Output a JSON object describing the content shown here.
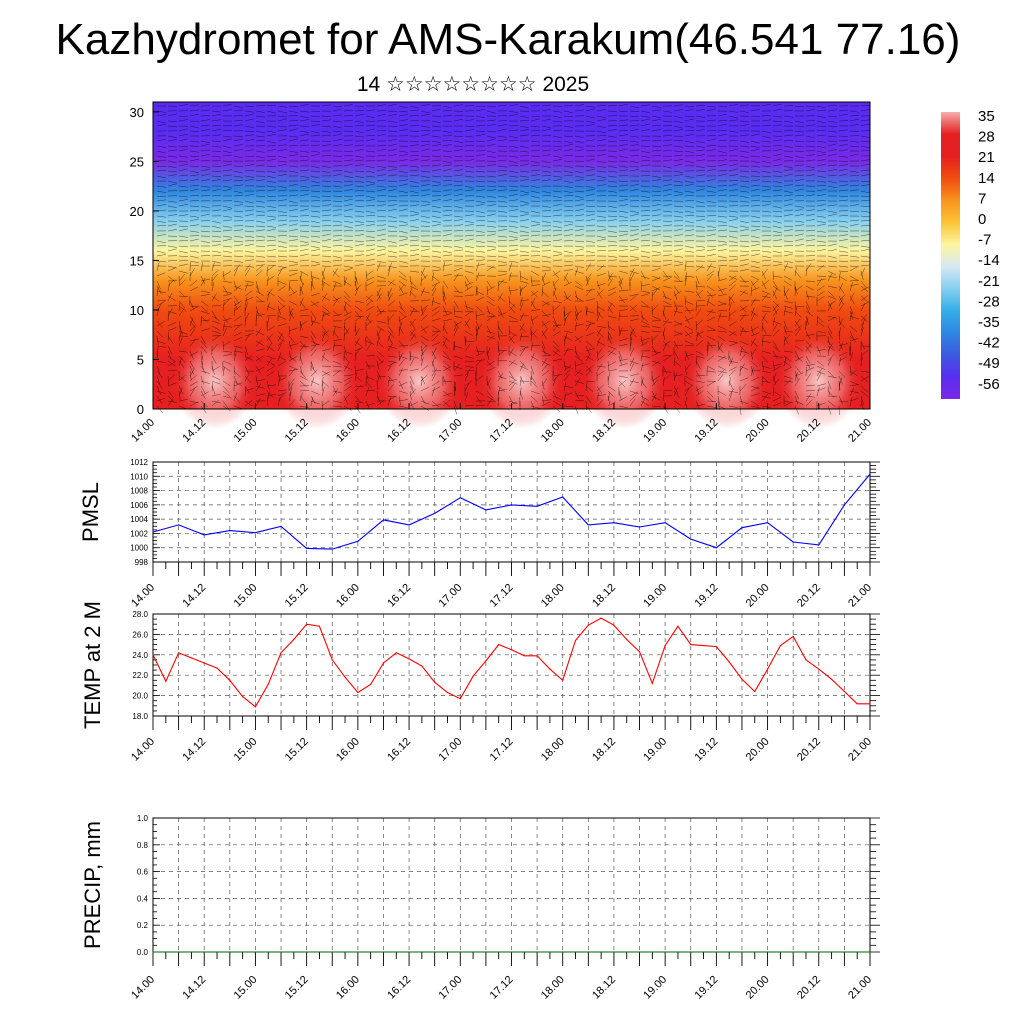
{
  "title": "Kazhydromet for AMS-Karakum(46.541 77.16)",
  "subtitle": "14 ☆☆☆☆☆☆☆☆ 2025",
  "chart_data": [
    {
      "type": "heatmap",
      "variable": "temperature with wind barbs",
      "yticks": [
        "0",
        "5",
        "10",
        "15",
        "20",
        "25",
        "30"
      ],
      "ylim": [
        0,
        31
      ],
      "xticks": [
        "14.00",
        "14.12",
        "15.00",
        "15.12",
        "16.00",
        "16.12",
        "17.00",
        "17.12",
        "18.00",
        "18.12",
        "19.00",
        "19.12",
        "20.00",
        "20.12",
        "21.00"
      ],
      "colorbar": {
        "labels": [
          "35",
          "28",
          "21",
          "14",
          "7",
          "0",
          "-7",
          "-14",
          "-21",
          "-28",
          "-35",
          "-42",
          "-49",
          "-56"
        ],
        "colors": [
          "#f4aeae",
          "#e62020",
          "#e62020",
          "#f04c10",
          "#f7941d",
          "#fbc437",
          "#fdf5a0",
          "#d7e8f4",
          "#86cff0",
          "#35aee8",
          "#2f87e0",
          "#3b5ae0",
          "#5a2cf2",
          "#7a2ae6"
        ]
      },
      "profile": [
        {
          "h": 0,
          "t": 30
        },
        {
          "h": 5,
          "t": 24
        },
        {
          "h": 10,
          "t": 14
        },
        {
          "h": 13,
          "t": 5
        },
        {
          "h": 16,
          "t": -7
        },
        {
          "h": 19,
          "t": -20
        },
        {
          "h": 22,
          "t": -35
        },
        {
          "h": 25,
          "t": -55
        },
        {
          "h": 28,
          "t": -52
        },
        {
          "h": 31,
          "t": -50
        }
      ],
      "grid": false
    },
    {
      "type": "line",
      "ylabel": "PMSL",
      "ylim": [
        998,
        1012
      ],
      "yticks": [
        "998",
        "1000",
        "1002",
        "1004",
        "1006",
        "1008",
        "1010",
        "1012"
      ],
      "xticks": [
        "14.00",
        "14.12",
        "15.00",
        "15.12",
        "16.00",
        "16.12",
        "17.00",
        "17.12",
        "18.00",
        "18.12",
        "19.00",
        "19.12",
        "20.00",
        "20.12",
        "21.00"
      ],
      "x_range": [
        0,
        168
      ],
      "grid": true,
      "series": [
        {
          "color": "#0000ff",
          "x": [
            0,
            6,
            12,
            18,
            24,
            30,
            36,
            42,
            48,
            54,
            60,
            66,
            72,
            78,
            84,
            90,
            96,
            102,
            108,
            114,
            120,
            126,
            132,
            138,
            144,
            150,
            156,
            162,
            168
          ],
          "values": [
            1002.2,
            1003.2,
            1001.8,
            1002.4,
            1002.1,
            1003.0,
            999.9,
            999.8,
            1000.9,
            1003.9,
            1003.2,
            1004.8,
            1007.0,
            1005.3,
            1006.0,
            1005.8,
            1007.1,
            1003.2,
            1003.5,
            1002.9,
            1003.5,
            1001.2,
            1000.0,
            1002.8,
            1003.5,
            1000.8,
            1000.4,
            1006.0,
            1010.3
          ]
        }
      ]
    },
    {
      "type": "line",
      "ylabel": "TEMP at 2 M",
      "ylim": [
        18,
        28
      ],
      "yticks": [
        "18.0",
        "20.0",
        "22.0",
        "24.0",
        "26.0",
        "28.0"
      ],
      "xticks": [
        "14.00",
        "14.12",
        "15.00",
        "15.12",
        "16.00",
        "16.12",
        "17.00",
        "17.12",
        "18.00",
        "18.12",
        "19.00",
        "19.12",
        "20.00",
        "20.12",
        "21.00"
      ],
      "x_range": [
        0,
        168
      ],
      "grid": true,
      "series": [
        {
          "color": "#ff0000",
          "x": [
            0,
            3,
            6,
            9,
            12,
            15,
            18,
            21,
            24,
            27,
            30,
            33,
            36,
            39,
            42,
            45,
            48,
            51,
            54,
            57,
            60,
            63,
            66,
            69,
            72,
            75,
            78,
            81,
            84,
            87,
            90,
            93,
            96,
            99,
            102,
            105,
            108,
            111,
            114,
            117,
            120,
            123,
            126,
            129,
            132,
            135,
            138,
            141,
            144,
            147,
            150,
            153,
            156,
            159,
            162,
            165,
            168
          ],
          "values": [
            24.0,
            21.4,
            24.2,
            23.7,
            23.2,
            22.7,
            21.5,
            19.9,
            18.9,
            21.1,
            24.2,
            25.5,
            27.0,
            26.8,
            23.5,
            21.8,
            20.3,
            21.1,
            23.2,
            24.2,
            23.6,
            22.9,
            21.3,
            20.3,
            19.7,
            21.9,
            23.4,
            25.0,
            24.5,
            23.9,
            23.9,
            22.6,
            21.5,
            25.4,
            26.9,
            27.6,
            26.9,
            25.5,
            24.3,
            21.2,
            24.9,
            26.8,
            25.0,
            24.9,
            24.8,
            23.3,
            21.6,
            20.4,
            22.6,
            24.9,
            25.8,
            23.5,
            22.6,
            21.6,
            20.4,
            19.2,
            19.2
          ]
        }
      ]
    },
    {
      "type": "line",
      "ylabel": "PRECIP, mm",
      "ylim": [
        0,
        1
      ],
      "yticks": [
        "0.0",
        "0.2",
        "0.4",
        "0.6",
        "0.8",
        "1.0"
      ],
      "xticks": [
        "14.00",
        "14.12",
        "15.00",
        "15.12",
        "16.00",
        "16.12",
        "17.00",
        "17.12",
        "18.00",
        "18.12",
        "19.00",
        "19.12",
        "20.00",
        "20.12",
        "21.00"
      ],
      "x_range": [
        0,
        168
      ],
      "grid": true,
      "series": [
        {
          "color": "#006400",
          "x": [
            0,
            168
          ],
          "values": [
            0,
            0
          ]
        }
      ]
    }
  ]
}
